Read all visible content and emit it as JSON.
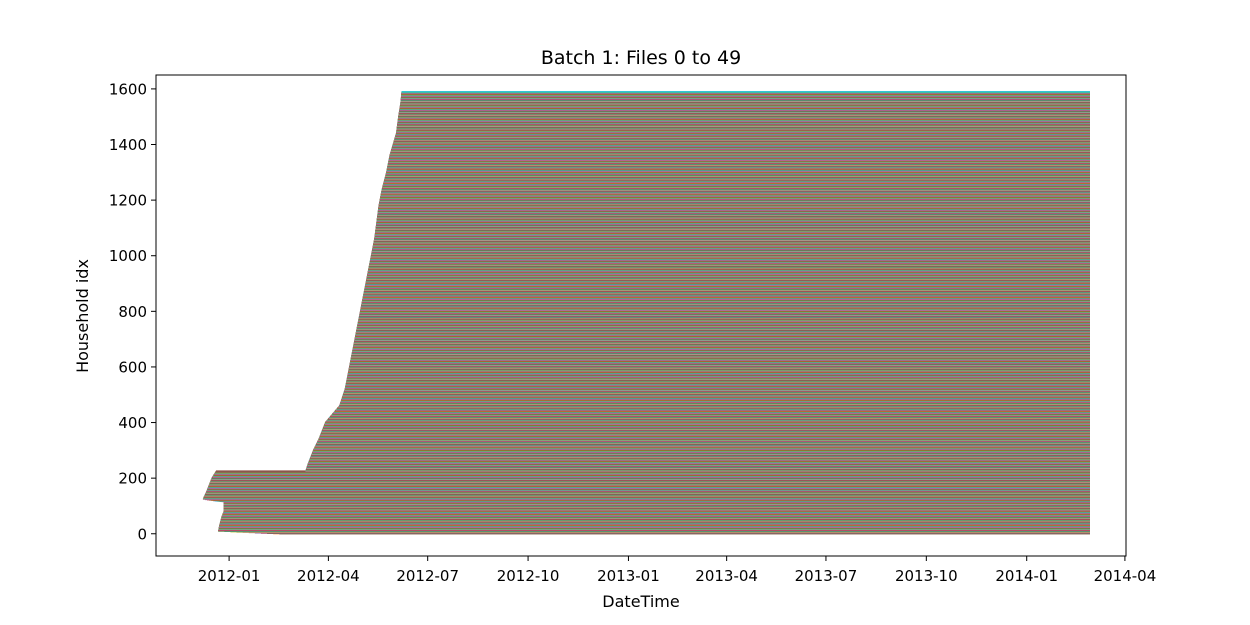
{
  "chart_data": {
    "type": "line",
    "title": "Batch 1: Files 0 to 49",
    "xlabel": "DateTime",
    "ylabel": "Household idx",
    "x_axis_kind": "date",
    "xlim": [
      "2011-10-26",
      "2014-04-02"
    ],
    "ylim": [
      -80,
      1650
    ],
    "x_ticks": [
      "2012-01",
      "2012-04",
      "2012-07",
      "2012-10",
      "2013-01",
      "2013-04",
      "2013-07",
      "2013-10",
      "2014-01",
      "2014-04"
    ],
    "y_ticks": [
      0,
      200,
      400,
      600,
      800,
      1000,
      1200,
      1400,
      1600
    ],
    "grid": false,
    "legend": "none",
    "series_description": "One horizontal line per household; series colors cycle through the default palette",
    "palette": [
      "#1f77b4",
      "#ff7f0e",
      "#2ca02c",
      "#d62728",
      "#9467bd",
      "#8c564b",
      "#e377c2",
      "#7f7f7f",
      "#bcbd22",
      "#17becf"
    ],
    "households_count": 1590,
    "common_end_date": "2014-02-28",
    "start_date_by_household": [
      {
        "household_idx": 0,
        "start": "2012-02-16"
      },
      {
        "household_idx": 10,
        "start": "2011-12-22"
      },
      {
        "household_idx": 30,
        "start": "2011-12-23"
      },
      {
        "household_idx": 60,
        "start": "2011-12-25"
      },
      {
        "household_idx": 80,
        "start": "2011-12-27"
      },
      {
        "household_idx": 115,
        "start": "2011-12-27"
      },
      {
        "household_idx": 125,
        "start": "2011-12-08"
      },
      {
        "household_idx": 150,
        "start": "2011-12-11"
      },
      {
        "household_idx": 180,
        "start": "2011-12-14"
      },
      {
        "household_idx": 200,
        "start": "2011-12-16"
      },
      {
        "household_idx": 225,
        "start": "2011-12-20"
      },
      {
        "household_idx": 226,
        "start": "2012-03-11"
      },
      {
        "household_idx": 250,
        "start": "2012-03-13"
      },
      {
        "household_idx": 300,
        "start": "2012-03-18"
      },
      {
        "household_idx": 340,
        "start": "2012-03-23"
      },
      {
        "household_idx": 400,
        "start": "2012-03-29"
      },
      {
        "household_idx": 460,
        "start": "2012-04-11"
      },
      {
        "household_idx": 520,
        "start": "2012-04-16"
      },
      {
        "household_idx": 560,
        "start": "2012-04-18"
      },
      {
        "household_idx": 620,
        "start": "2012-04-21"
      },
      {
        "household_idx": 700,
        "start": "2012-04-25"
      },
      {
        "household_idx": 760,
        "start": "2012-04-28"
      },
      {
        "household_idx": 800,
        "start": "2012-04-30"
      },
      {
        "household_idx": 860,
        "start": "2012-05-03"
      },
      {
        "household_idx": 940,
        "start": "2012-05-07"
      },
      {
        "household_idx": 1000,
        "start": "2012-05-10"
      },
      {
        "household_idx": 1060,
        "start": "2012-05-13"
      },
      {
        "household_idx": 1120,
        "start": "2012-05-15"
      },
      {
        "household_idx": 1180,
        "start": "2012-05-17"
      },
      {
        "household_idx": 1240,
        "start": "2012-05-20"
      },
      {
        "household_idx": 1300,
        "start": "2012-05-24"
      },
      {
        "household_idx": 1360,
        "start": "2012-05-27"
      },
      {
        "household_idx": 1400,
        "start": "2012-05-30"
      },
      {
        "household_idx": 1440,
        "start": "2012-06-02"
      },
      {
        "household_idx": 1500,
        "start": "2012-06-04"
      },
      {
        "household_idx": 1550,
        "start": "2012-06-06"
      },
      {
        "household_idx": 1589,
        "start": "2012-06-07"
      }
    ]
  }
}
